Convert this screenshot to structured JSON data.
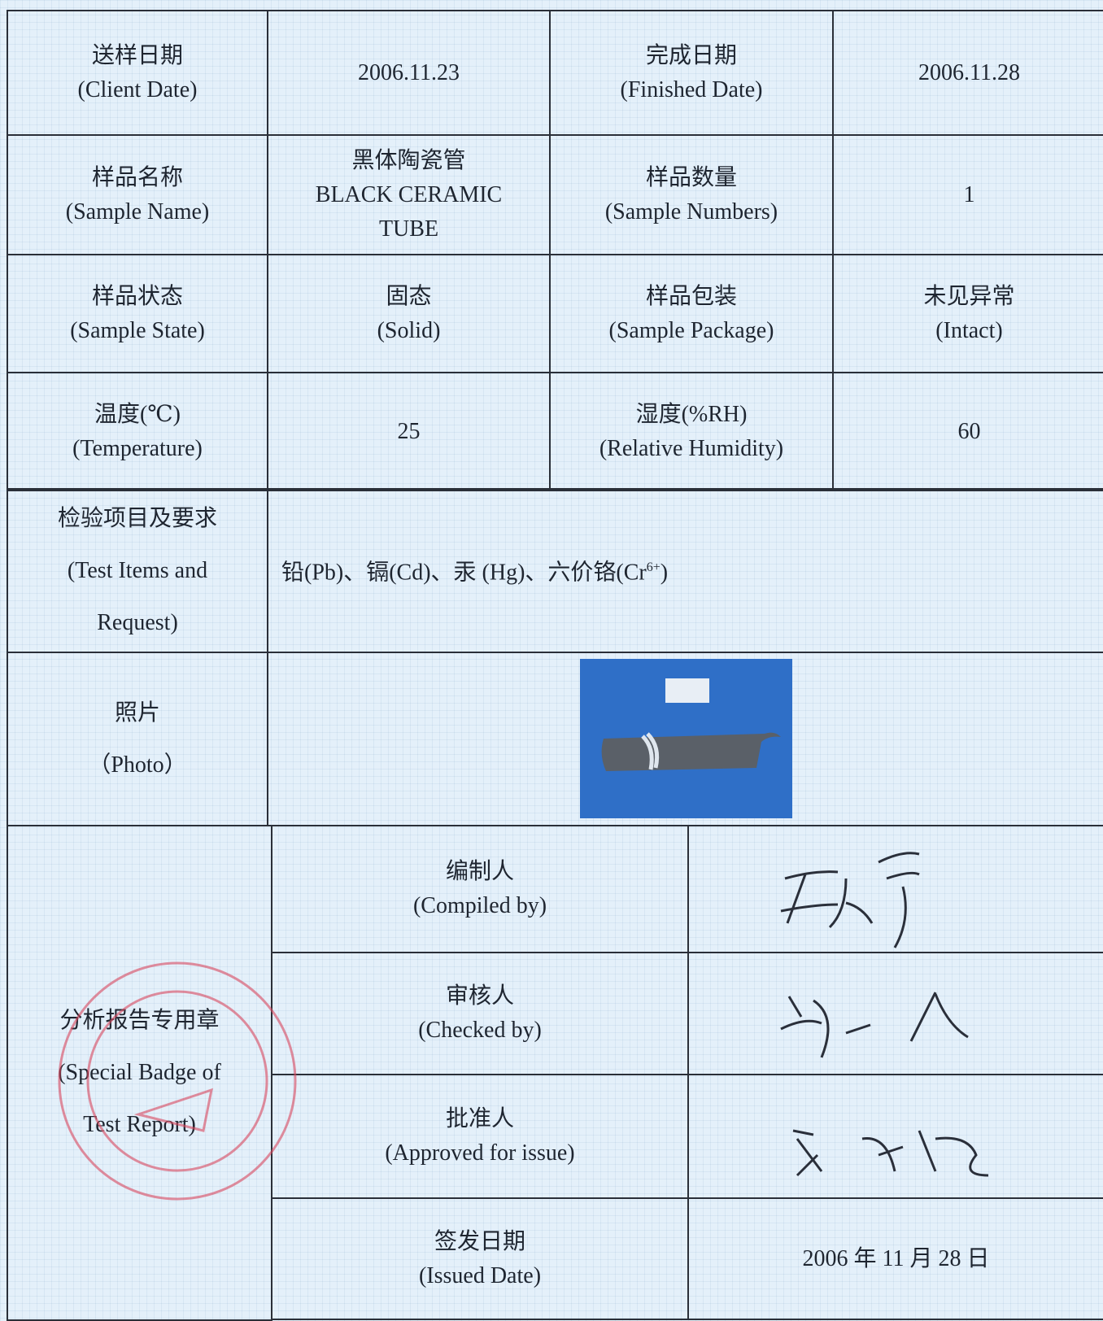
{
  "table": {
    "rows": [
      [
        [
          "送样日期",
          "(Client Date)"
        ],
        [
          "2006.11.23"
        ],
        [
          "完成日期",
          "(Finished Date)"
        ],
        [
          "2006.11.28"
        ]
      ],
      [
        [
          "样品名称",
          "(Sample Name)"
        ],
        [
          "黑体陶瓷管",
          "BLACK CERAMIC",
          "TUBE"
        ],
        [
          "样品数量",
          "(Sample Numbers)"
        ],
        [
          "1"
        ]
      ],
      [
        [
          "样品状态",
          "(Sample State)"
        ],
        [
          "固态",
          "(Solid)"
        ],
        [
          "样品包装",
          "(Sample Package)"
        ],
        [
          "未见异常",
          "(Intact)"
        ]
      ],
      [
        [
          "温度(℃)",
          "(Temperature)"
        ],
        [
          "25"
        ],
        [
          "湿度(%RH)",
          "(Relative Humidity)"
        ],
        [
          "60"
        ]
      ],
      [
        [
          "检验项目及要求",
          "(Test Items and",
          "Request)"
        ]
      ],
      [
        [
          "照片",
          "（Photo）"
        ]
      ]
    ],
    "test_items": {
      "text": "铅(Pb)、镉(Cd)、汞 (Hg)、六价铬(Cr",
      "superscript": "6+",
      "closing": ")"
    }
  },
  "signoff": {
    "section_label": [
      "分析报告专用章",
      "(Special Badge of",
      "Test Report)"
    ],
    "rows": [
      {
        "role": [
          "编制人",
          "(Compiled by)"
        ]
      },
      {
        "role": [
          "审核人",
          "(Checked by)"
        ]
      },
      {
        "role": [
          "批准人",
          "(Approved for issue)"
        ]
      },
      {
        "role": [
          "签发日期",
          "(Issued Date)"
        ],
        "value": "2006 年 11 月 28 日"
      }
    ]
  }
}
